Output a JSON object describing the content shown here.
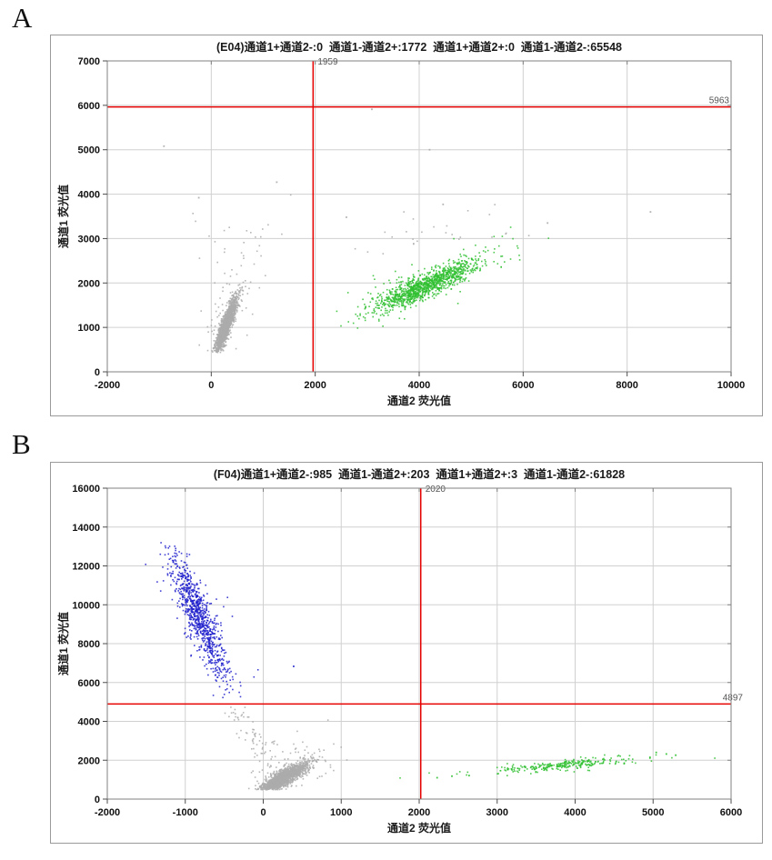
{
  "page": {
    "fig_label_a": "A",
    "fig_label_b": "B"
  },
  "palette": {
    "red": "#e60000",
    "green": "#2fc030",
    "blue": "#2020cc",
    "gray": "#ababab",
    "grid": "#d0d0d0",
    "plot_border": "#808080",
    "axis": "#4d4d4d",
    "text": "#111111",
    "threshold_label": "#555555"
  },
  "chart_data": [
    {
      "type": "scatter",
      "well": "E04",
      "title": "(E04)通道1+通道2-:0  通道1-通道2+:1772  通道1+通道2+:0  通道1-通道2-:65548",
      "xlabel": "通道2 荧光值",
      "ylabel": "通道1 荧光值",
      "xlim": [
        -2000,
        10000
      ],
      "ylim": [
        0,
        7000
      ],
      "xticks": [
        -2000,
        0,
        2000,
        4000,
        6000,
        8000,
        10000
      ],
      "yticks": [
        0,
        1000,
        2000,
        3000,
        4000,
        5000,
        6000,
        7000
      ],
      "threshold_x": 1959,
      "threshold_y": 5963,
      "threshold_x_label": "1959",
      "threshold_y_label": "5963",
      "quadrant_stats": {
        "ch1pos_ch2neg": 0,
        "ch1neg_ch2pos": 1772,
        "ch1pos_ch2pos": 0,
        "ch1neg_ch2neg": 65548
      },
      "clusters": [
        {
          "name": "negative-droplets-dense",
          "color": "gray",
          "count": 1600,
          "cx": 280,
          "cy": 1020,
          "sx": 110,
          "sy": 330,
          "corr": 0.9,
          "ymin": 430,
          "seed": 11
        },
        {
          "name": "negative-droplets-halo",
          "color": "gray",
          "count": 90,
          "cx": 350,
          "cy": 1500,
          "sx": 260,
          "sy": 600,
          "corr": 0.55,
          "ymin": 420,
          "seed": 12
        },
        {
          "name": "negative-rain-mid",
          "color": "gray",
          "count": 18,
          "cx": 600,
          "cy": 3000,
          "sx": 500,
          "sy": 420,
          "corr": 0.1,
          "seed": 13
        },
        {
          "name": "rain-above-positives",
          "color": "gray",
          "count": 26,
          "cx": 4300,
          "cy": 3150,
          "sx": 750,
          "sy": 330,
          "corr": 0.2,
          "seed": 14
        },
        {
          "name": "ch2-positive-droplets-dense",
          "color": "green",
          "count": 1050,
          "cx": 4150,
          "cy": 1950,
          "sx": 520,
          "sy": 300,
          "corr": 0.88,
          "seed": 15
        },
        {
          "name": "ch2-positive-droplets-halo",
          "color": "green",
          "count": 130,
          "cx": 4100,
          "cy": 2000,
          "sx": 750,
          "sy": 430,
          "corr": 0.7,
          "seed": 16
        }
      ],
      "extra_points": [
        {
          "x": -910,
          "y": 5080,
          "color": "gray"
        },
        {
          "x": 3090,
          "y": 5910,
          "color": "gray"
        },
        {
          "x": 4200,
          "y": 5000,
          "color": "gray"
        },
        {
          "x": 1260,
          "y": 4270,
          "color": "gray"
        },
        {
          "x": 6470,
          "y": 3350,
          "color": "gray"
        },
        {
          "x": 8450,
          "y": 3600,
          "color": "gray"
        },
        {
          "x": 2600,
          "y": 3480,
          "color": "gray"
        },
        {
          "x": 4460,
          "y": 3770,
          "color": "gray"
        },
        {
          "x": -240,
          "y": 3920,
          "color": "gray"
        }
      ]
    },
    {
      "type": "scatter",
      "well": "F04",
      "title": "(F04)通道1+通道2-:985  通道1-通道2+:203  通道1+通道2+:3  通道1-通道2-:61828",
      "xlabel": "通道2 荧光值",
      "ylabel": "通道1 荧光值",
      "xlim": [
        -2000,
        6000
      ],
      "ylim": [
        0,
        16000
      ],
      "xticks": [
        -2000,
        -1000,
        0,
        1000,
        2000,
        3000,
        4000,
        5000,
        6000
      ],
      "yticks": [
        0,
        2000,
        4000,
        6000,
        8000,
        10000,
        12000,
        14000,
        16000
      ],
      "threshold_x": 2020,
      "threshold_y": 4897,
      "threshold_x_label": "2020",
      "threshold_y_label": "4897",
      "quadrant_stats": {
        "ch1pos_ch2neg": 985,
        "ch1neg_ch2pos": 203,
        "ch1pos_ch2pos": 3,
        "ch1neg_ch2neg": 61828
      },
      "clusters": [
        {
          "name": "ch1-positive-droplets-dense",
          "color": "blue",
          "count": 800,
          "cx": -820,
          "cy": 9350,
          "sx": 190,
          "sy": 1650,
          "corr": -0.88,
          "ymin": 5050,
          "ymax": 13250,
          "seed": 21
        },
        {
          "name": "ch1-positive-droplets-halo",
          "color": "blue",
          "count": 90,
          "cx": -820,
          "cy": 9300,
          "sx": 300,
          "sy": 2200,
          "corr": -0.8,
          "ymin": 5000,
          "ymax": 13400,
          "seed": 22
        },
        {
          "name": "rain-transition-tail",
          "kind": "line",
          "color": "gray",
          "count": 55,
          "from": [
            -430,
            4850
          ],
          "to": [
            60,
            2250
          ],
          "jx": 70,
          "jy": 280,
          "seed": 23
        },
        {
          "name": "negative-droplets-dense",
          "color": "gray",
          "count": 1700,
          "cx": 260,
          "cy": 1080,
          "sx": 150,
          "sy": 380,
          "corr": 0.85,
          "ymin": 480,
          "seed": 24
        },
        {
          "name": "negative-droplets-halo",
          "color": "gray",
          "count": 120,
          "cx": 300,
          "cy": 1400,
          "sx": 280,
          "sy": 550,
          "corr": 0.5,
          "ymin": 450,
          "seed": 25
        },
        {
          "name": "negative-rain-upper",
          "color": "gray",
          "count": 22,
          "cx": 450,
          "cy": 2700,
          "sx": 300,
          "sy": 500,
          "corr": 0.0,
          "seed": 26
        },
        {
          "name": "ch2-positive-droplets-dense",
          "color": "green",
          "count": 210,
          "cx": 3900,
          "cy": 1780,
          "sx": 430,
          "sy": 190,
          "corr": 0.82,
          "seed": 27
        },
        {
          "name": "ch2-positive-droplets-halo",
          "color": "green",
          "count": 60,
          "cx": 3700,
          "cy": 1650,
          "sx": 850,
          "sy": 300,
          "corr": 0.75,
          "seed": 28
        }
      ],
      "extra_points": [
        {
          "x": 390,
          "y": 6830,
          "color": "blue"
        },
        {
          "x": 5040,
          "y": 2400,
          "color": "green"
        },
        {
          "x": 5170,
          "y": 2320,
          "color": "green"
        },
        {
          "x": 5290,
          "y": 2260,
          "color": "green"
        },
        {
          "x": 4960,
          "y": 2150,
          "color": "green"
        },
        {
          "x": 2230,
          "y": 1100,
          "color": "green"
        },
        {
          "x": 2420,
          "y": 1180,
          "color": "green"
        },
        {
          "x": 2640,
          "y": 1210,
          "color": "green"
        }
      ]
    }
  ]
}
